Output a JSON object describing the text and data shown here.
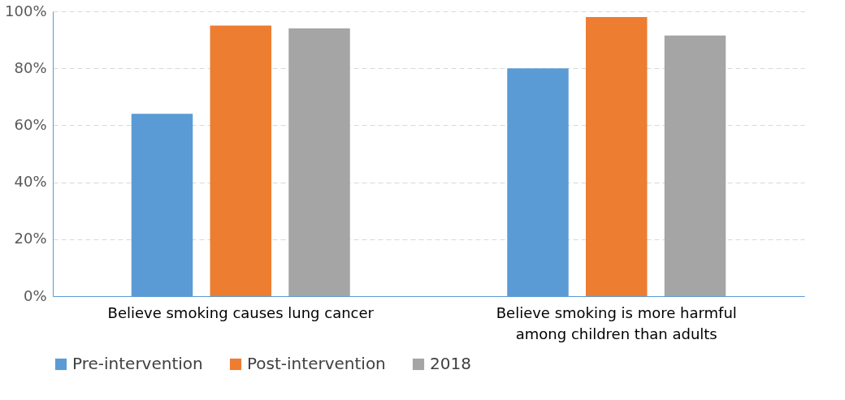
{
  "chart_data": {
    "type": "bar",
    "categories": [
      "Believe smoking causes lung cancer",
      "Believe smoking is more harmful among children than adults"
    ],
    "series": [
      {
        "name": "Pre-intervention",
        "color": "#5b9bd5",
        "values": [
          64,
          80
        ]
      },
      {
        "name": "Post-intervention",
        "color": "#ed7d31",
        "values": [
          95,
          98
        ]
      },
      {
        "name": "2018",
        "color": "#a5a5a5",
        "values": [
          94,
          91.5
        ]
      }
    ],
    "ylim": [
      0,
      100
    ],
    "yticks": [
      {
        "value": 0,
        "label": "0%"
      },
      {
        "value": 20,
        "label": "20%"
      },
      {
        "value": 40,
        "label": "40%"
      },
      {
        "value": 60,
        "label": "60%"
      },
      {
        "value": 80,
        "label": "80%"
      },
      {
        "value": 100,
        "label": "100%"
      }
    ],
    "grid": "y",
    "legend": "bottom"
  }
}
